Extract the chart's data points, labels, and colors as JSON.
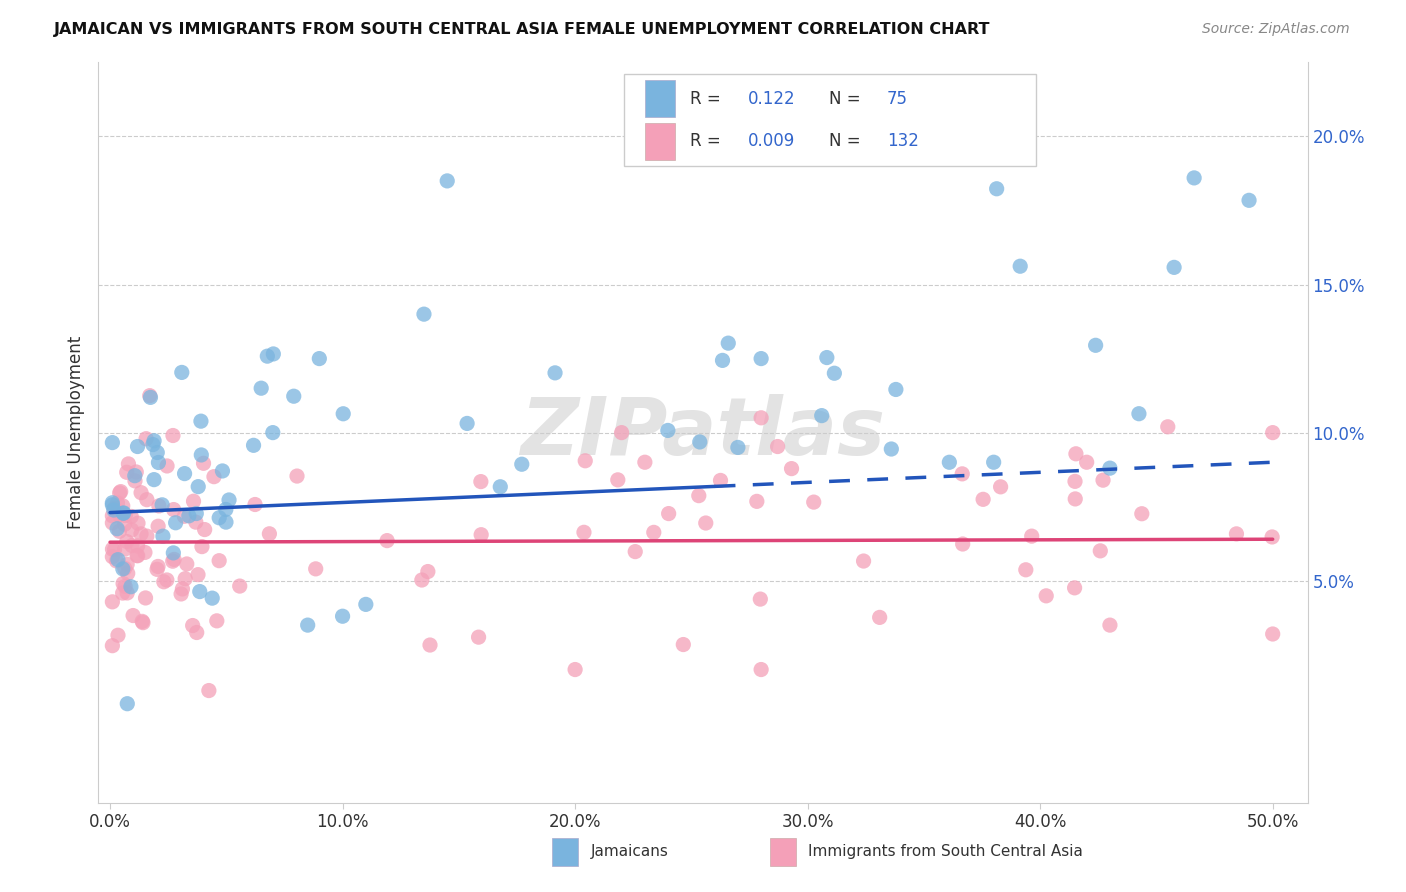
{
  "title": "JAMAICAN VS IMMIGRANTS FROM SOUTH CENTRAL ASIA FEMALE UNEMPLOYMENT CORRELATION CHART",
  "source": "Source: ZipAtlas.com",
  "ylabel_label": "Female Unemployment",
  "right_yticks": [
    "5.0%",
    "10.0%",
    "15.0%",
    "20.0%"
  ],
  "right_ytick_vals": [
    0.05,
    0.1,
    0.15,
    0.2
  ],
  "xlim": [
    -0.005,
    0.515
  ],
  "ylim": [
    -0.025,
    0.225
  ],
  "jamaicans_color": "#7ab4de",
  "immigrants_color": "#f4a0b8",
  "jamaicans_line_color": "#2255bb",
  "immigrants_line_color": "#dd4477",
  "legend_text_color": "#3366cc",
  "r_jamaicans": "0.122",
  "n_jamaicans": "75",
  "r_immigrants": "0.009",
  "n_immigrants": "132",
  "watermark": "ZIPatlas",
  "legend_label_jamaicans": "Jamaicans",
  "legend_label_immigrants": "Immigrants from South Central Asia",
  "background_color": "#ffffff",
  "grid_color": "#cccccc",
  "jam_line_y0": 0.073,
  "jam_line_y1": 0.09,
  "imm_line_y0": 0.063,
  "imm_line_y1": 0.064,
  "jam_line_solid_end": 0.26,
  "xtick_vals": [
    0.0,
    0.1,
    0.2,
    0.3,
    0.4,
    0.5
  ]
}
